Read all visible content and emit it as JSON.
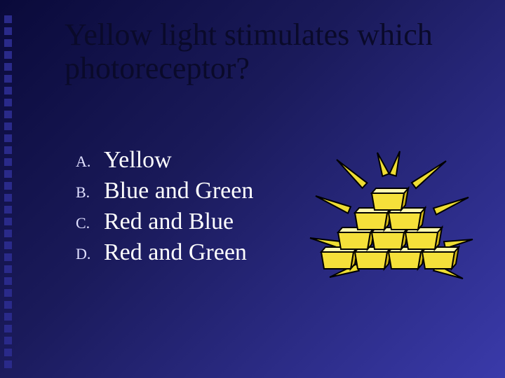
{
  "title": "Yellow light stimulates which photoreceptor?",
  "options": {
    "a": {
      "marker": "A.",
      "text": "Yellow"
    },
    "b": {
      "marker": "B.",
      "text": "Blue and Green"
    },
    "c": {
      "marker": "C.",
      "text": "Red and Blue"
    },
    "d": {
      "marker": "D.",
      "text": "Red and Green"
    }
  },
  "decor": {
    "square_color": "#2a2a8a",
    "square_count": 30
  },
  "clipart": {
    "gold_fill": "#f5e03a",
    "gold_stroke": "#000000",
    "gold_top": "#fff9b0",
    "gold_side": "#d4b818",
    "ray_color": "#eedd33",
    "ray_stroke": "#000000"
  }
}
